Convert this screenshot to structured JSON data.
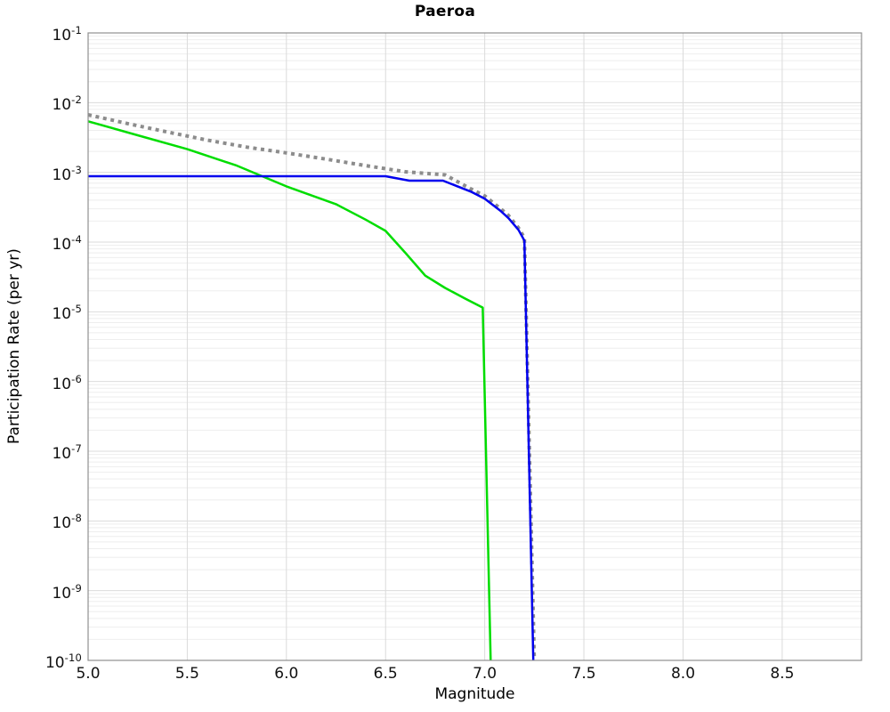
{
  "chart_data": {
    "type": "line",
    "title": "Paeroa",
    "xlabel": "Magnitude",
    "ylabel": "Participation Rate (per yr)",
    "xlim": [
      5.0,
      8.9
    ],
    "ylim": [
      1e-10,
      0.1
    ],
    "grid": "major and log-minor horizontal gridlines, major vertical gridlines",
    "legend": "none",
    "x_ticks": [
      {
        "value": 5.0,
        "label": "5.0"
      },
      {
        "value": 5.5,
        "label": "5.5"
      },
      {
        "value": 6.0,
        "label": "6.0"
      },
      {
        "value": 6.5,
        "label": "6.5"
      },
      {
        "value": 7.0,
        "label": "7.0"
      },
      {
        "value": 7.5,
        "label": "7.5"
      },
      {
        "value": 8.0,
        "label": "8.0"
      },
      {
        "value": 8.5,
        "label": "8.5"
      }
    ],
    "y_tick_base": "10",
    "y_ticks": [
      {
        "value": 0.1,
        "exp": "-1"
      },
      {
        "value": 0.01,
        "exp": "-2"
      },
      {
        "value": 0.001,
        "exp": "-3"
      },
      {
        "value": 0.0001,
        "exp": "-4"
      },
      {
        "value": 1e-05,
        "exp": "-5"
      },
      {
        "value": 1e-06,
        "exp": "-6"
      },
      {
        "value": 1e-07,
        "exp": "-7"
      },
      {
        "value": 1e-08,
        "exp": "-8"
      },
      {
        "value": 1e-09,
        "exp": "-9"
      },
      {
        "value": 1e-10,
        "exp": "-10"
      }
    ],
    "series": [
      {
        "name": "gray-dotted",
        "color": "#8c8c8c",
        "line_style": "dotted",
        "line_width": 4,
        "points": [
          [
            5.0,
            0.0067
          ],
          [
            5.2,
            0.005
          ],
          [
            5.4,
            0.0038
          ],
          [
            5.6,
            0.0029
          ],
          [
            5.8,
            0.0023
          ],
          [
            6.0,
            0.0019
          ],
          [
            6.2,
            0.00155
          ],
          [
            6.4,
            0.00125
          ],
          [
            6.6,
            0.00102
          ],
          [
            6.8,
            0.00092
          ],
          [
            6.93,
            0.00058
          ],
          [
            7.0,
            0.00046
          ],
          [
            7.08,
            0.0003
          ],
          [
            7.12,
            0.00024
          ],
          [
            7.17,
            0.00016
          ],
          [
            7.2,
            0.000115
          ],
          [
            7.25,
            1e-10
          ]
        ]
      },
      {
        "name": "green-solid",
        "color": "#00dd00",
        "line_style": "solid",
        "line_width": 2.5,
        "points": [
          [
            5.0,
            0.0054
          ],
          [
            5.25,
            0.0034
          ],
          [
            5.5,
            0.00215
          ],
          [
            5.75,
            0.00125
          ],
          [
            6.0,
            0.00063
          ],
          [
            6.25,
            0.00035
          ],
          [
            6.4,
            0.00021
          ],
          [
            6.5,
            0.000145
          ],
          [
            6.6,
            7e-05
          ],
          [
            6.7,
            3.3e-05
          ],
          [
            6.8,
            2.2e-05
          ],
          [
            6.9,
            1.55e-05
          ],
          [
            6.99,
            1.15e-05
          ],
          [
            7.03,
            1e-10
          ]
        ]
      },
      {
        "name": "blue-solid",
        "color": "#0000ee",
        "line_style": "solid",
        "line_width": 2.5,
        "points": [
          [
            5.0,
            0.00088
          ],
          [
            6.5,
            0.00088
          ],
          [
            6.62,
            0.00076
          ],
          [
            6.79,
            0.00076
          ],
          [
            6.93,
            0.00053
          ],
          [
            7.0,
            0.00042
          ],
          [
            7.08,
            0.00028
          ],
          [
            7.12,
            0.00022
          ],
          [
            7.17,
            0.00015
          ],
          [
            7.2,
            0.000105
          ],
          [
            7.245,
            1e-10
          ]
        ]
      }
    ],
    "colors": {
      "background": "#ffffff",
      "plot_background": "#ffffff",
      "grid_major": "#dbdbdb",
      "grid_minor": "#eeeeee",
      "spine": "#8f8f8f",
      "text": "#000000"
    }
  }
}
